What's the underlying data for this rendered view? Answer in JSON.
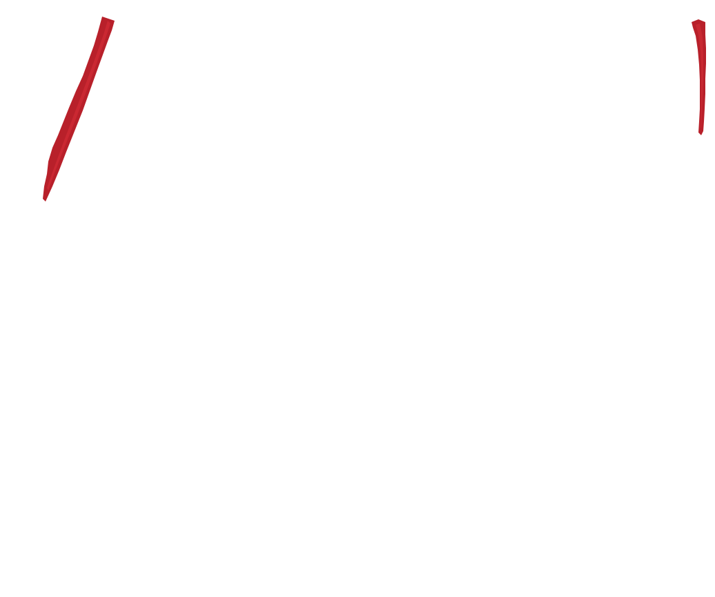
{
  "canvas": {
    "background": "#ffffff"
  },
  "marks": {
    "color": "#b8202a",
    "highlight": "#d83038",
    "items": [
      {
        "name": "red-brush-stroke-left"
      },
      {
        "name": "red-brush-stroke-right"
      }
    ]
  }
}
